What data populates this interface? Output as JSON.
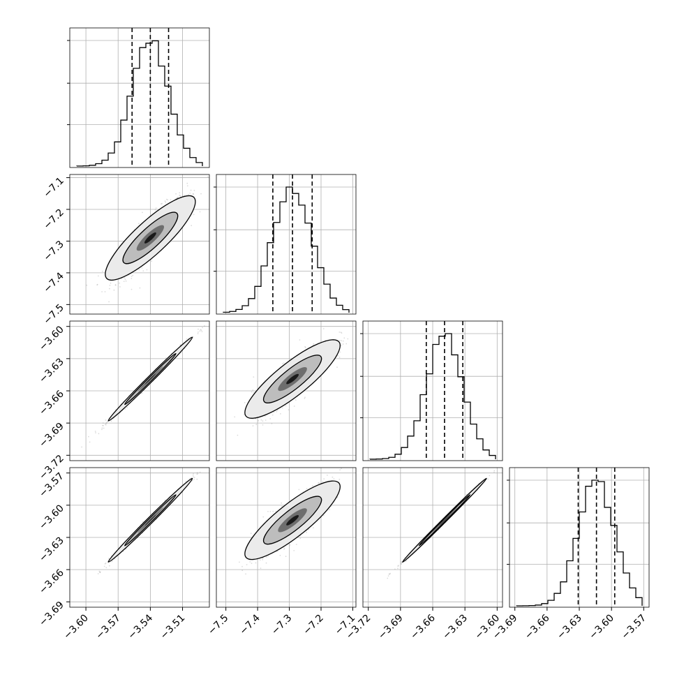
{
  "figure": {
    "kind": "corner plot",
    "n_params": 4,
    "quantile_lines": "dashed",
    "grid": true,
    "colors": {
      "ink": "#000000",
      "grid": "#b0b0b0",
      "cloud": "#9a9a9a",
      "fill_light": "#ebebeb",
      "fill_mid": "#bdbdbd",
      "fill_dark": "#6e6e6e",
      "fill_core": "#1a1a1a"
    }
  },
  "chart_data": [
    {
      "type": "histogram",
      "param": 0,
      "range": [
        -3.615,
        -3.485
      ],
      "mean": -3.54,
      "sigma": 0.017,
      "quantiles": [
        -3.557,
        -3.54,
        -3.523
      ],
      "x_ticks": [
        "−3.60",
        "−3.57",
        "−3.54",
        "−3.51"
      ],
      "x_tick_values": [
        -3.6,
        -3.57,
        -3.54,
        -3.51
      ]
    },
    {
      "type": "histogram",
      "param": 1,
      "range": [
        -7.53,
        -7.09
      ],
      "mean": -7.29,
      "sigma": 0.062,
      "quantiles": [
        -7.352,
        -7.29,
        -7.228
      ],
      "x_ticks": [
        "−7.5",
        "−7.4",
        "−7.3",
        "−7.2",
        "−7.1"
      ],
      "x_tick_values": [
        -7.5,
        -7.4,
        -7.3,
        -7.2,
        -7.1
      ]
    },
    {
      "type": "histogram",
      "param": 2,
      "range": [
        -3.725,
        -3.595
      ],
      "mean": -3.649,
      "sigma": 0.017,
      "quantiles": [
        -3.666,
        -3.649,
        -3.632
      ],
      "x_ticks": [
        "−3.72",
        "−3.69",
        "−3.66",
        "−3.63",
        "−3.60"
      ],
      "x_tick_values": [
        -3.72,
        -3.69,
        -3.66,
        -3.63,
        -3.6
      ]
    },
    {
      "type": "histogram",
      "param": 3,
      "range": [
        -3.695,
        -3.565
      ],
      "mean": -3.614,
      "sigma": 0.017,
      "quantiles": [
        -3.631,
        -3.614,
        -3.597
      ],
      "x_ticks": [
        "−3.69",
        "−3.66",
        "−3.63",
        "−3.60",
        "−3.57"
      ],
      "x_tick_values": [
        -3.69,
        -3.66,
        -3.63,
        -3.6,
        -3.57
      ]
    },
    {
      "type": "scatter",
      "x_param": 0,
      "y_param": 1,
      "correlation": 0.86,
      "y_ticks": [
        "−7.1",
        "−7.2",
        "−7.3",
        "−7.4",
        "−7.5"
      ],
      "y_tick_values": [
        -7.1,
        -7.2,
        -7.3,
        -7.4,
        -7.5
      ]
    },
    {
      "type": "scatter",
      "x_param": 0,
      "y_param": 2,
      "correlation": 0.995,
      "y_ticks": [
        "−3.60",
        "−3.63",
        "−3.66",
        "−3.69",
        "−3.72"
      ],
      "y_tick_values": [
        -3.6,
        -3.63,
        -3.66,
        -3.69,
        -3.72
      ]
    },
    {
      "type": "scatter",
      "x_param": 1,
      "y_param": 2,
      "correlation": 0.86
    },
    {
      "type": "scatter",
      "x_param": 0,
      "y_param": 3,
      "correlation": 0.995,
      "y_ticks": [
        "−3.57",
        "−3.60",
        "−3.63",
        "−3.66",
        "−3.69"
      ],
      "y_tick_values": [
        -3.57,
        -3.6,
        -3.63,
        -3.66,
        -3.69
      ]
    },
    {
      "type": "scatter",
      "x_param": 1,
      "y_param": 3,
      "correlation": 0.86
    },
    {
      "type": "scatter",
      "x_param": 2,
      "y_param": 3,
      "correlation": 0.998
    }
  ]
}
